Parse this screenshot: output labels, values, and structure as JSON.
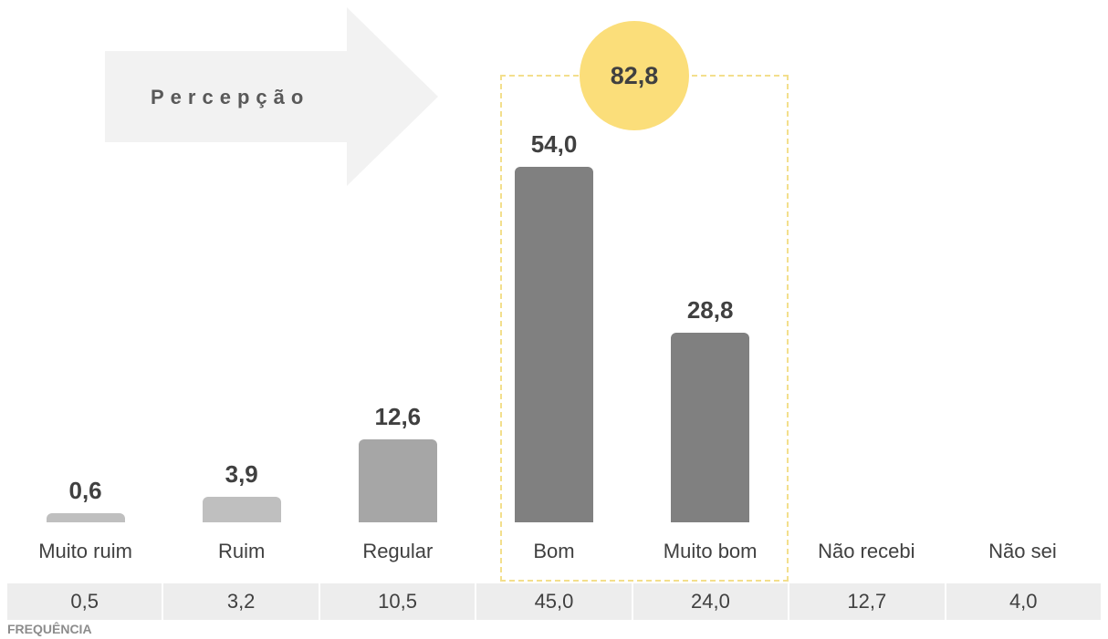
{
  "arrow": {
    "label": "Percepção"
  },
  "highlight": {
    "total": "82,8"
  },
  "chart_data": {
    "type": "bar",
    "categories": [
      "Muito ruim",
      "Ruim",
      "Regular",
      "Bom",
      "Muito bom",
      "Não recebi",
      "Não sei"
    ],
    "values": [
      0.6,
      3.9,
      12.6,
      54.0,
      28.8,
      null,
      null
    ],
    "value_labels": [
      "0,6",
      "3,9",
      "12,6",
      "54,0",
      "28,8",
      "",
      ""
    ],
    "bar_colors": [
      "#bfbfbf",
      "#bfbfbf",
      "#a6a6a6",
      "#808080",
      "#808080",
      "",
      ""
    ],
    "ylim": [
      0,
      54
    ],
    "grid": false,
    "legend": "none"
  },
  "frequency": {
    "title": "FREQUÊNCIA",
    "values": [
      "0,5",
      "3,2",
      "10,5",
      "45,0",
      "24,0",
      "12,7",
      "4,0"
    ]
  }
}
